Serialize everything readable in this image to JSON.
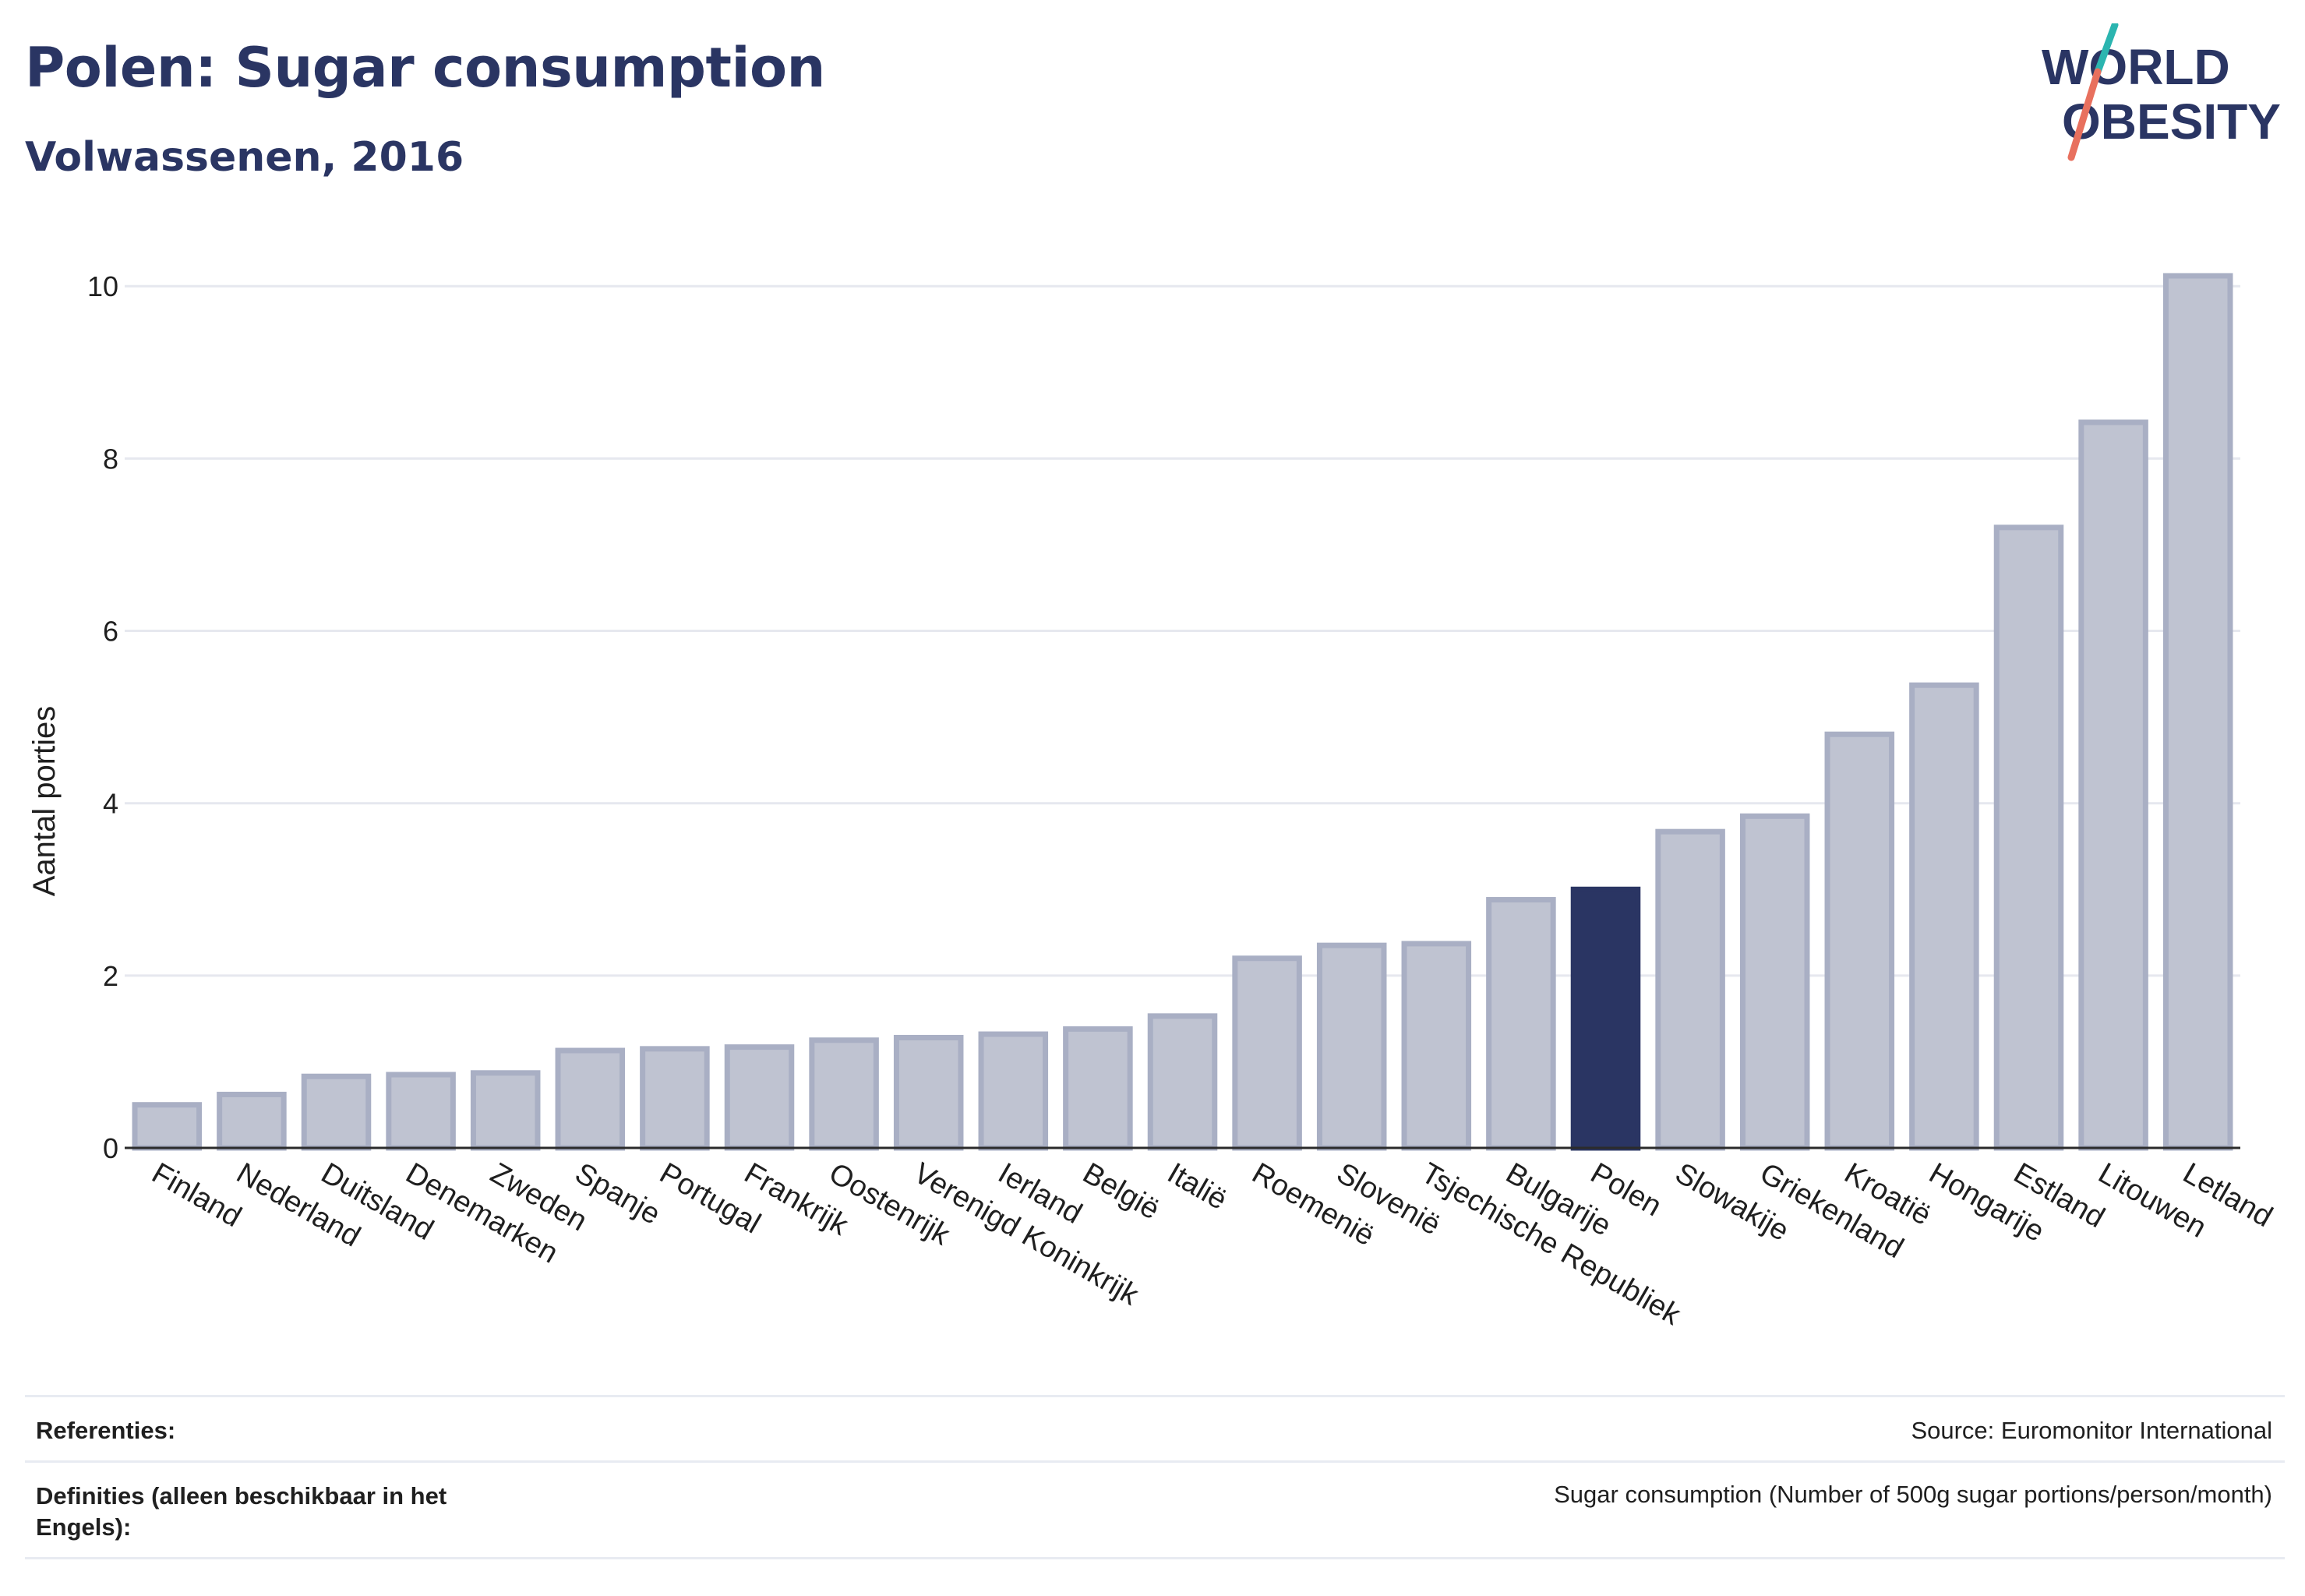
{
  "header": {
    "title": "Polen: Sugar consumption",
    "subtitle": "Volwassenen, 2016"
  },
  "logo": {
    "line1": "WORLD",
    "line2": "OBESITY",
    "colors": {
      "text": "#2a3563",
      "slash_top": "#2bb5b0",
      "slash_bottom": "#e8705e"
    }
  },
  "colors": {
    "bar_default": "#bfc3d1",
    "bar_default_border": "#a9afc4",
    "bar_highlight": "#2a3563",
    "grid": "#e6e8ef",
    "axis": "#2b2b2b"
  },
  "chart_data": {
    "type": "bar",
    "ylabel": "Aantal porties",
    "ylim": [
      0,
      10.4
    ],
    "yticks": [
      0,
      2,
      4,
      6,
      8,
      10
    ],
    "grid": true,
    "highlight": "Polen",
    "categories": [
      "Finland",
      "Nederland",
      "Duitsland",
      "Denemarken",
      "Zweden",
      "Spanje",
      "Portugal",
      "Frankrijk",
      "Oostenrijk",
      "Verenigd Koninkrijk",
      "Ierland",
      "België",
      "Italië",
      "Roemenië",
      "Slovenië",
      "Tsjechische Republiek",
      "Bulgarije",
      "Polen",
      "Slowakije",
      "Griekenland",
      "Kroatië",
      "Hongarije",
      "Estland",
      "Litouwen",
      "Letland"
    ],
    "values": [
      0.5,
      0.62,
      0.83,
      0.85,
      0.87,
      1.13,
      1.15,
      1.17,
      1.25,
      1.28,
      1.32,
      1.38,
      1.53,
      2.2,
      2.35,
      2.37,
      2.88,
      3.0,
      3.67,
      3.85,
      4.8,
      5.37,
      7.2,
      8.42,
      10.12
    ]
  },
  "footer": {
    "references_label": "Referenties:",
    "references_value": "Source: Euromonitor International",
    "definitions_label": "Definities (alleen beschikbaar in het Engels):",
    "definitions_value": "Sugar consumption (Number of 500g sugar portions/person/month)"
  }
}
